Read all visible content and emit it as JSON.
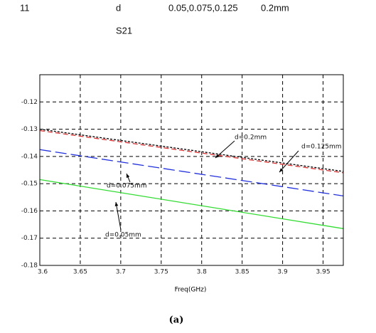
{
  "document": {
    "lines": [
      "11",
      "d",
      "0.05,0.075,0.125",
      "0.2mm",
      "S21"
    ]
  },
  "chart_data": {
    "type": "line",
    "x_label": "Freq(GHz)",
    "xlim": [
      3.6,
      3.975
    ],
    "xticks": [
      3.6,
      3.65,
      3.7,
      3.75,
      3.8,
      3.85,
      3.9,
      3.95
    ],
    "ylim": [
      -0.18,
      -0.11
    ],
    "yticks": [
      -0.18,
      -0.17,
      -0.16,
      -0.15,
      -0.14,
      -0.13,
      -0.12
    ],
    "grid": true,
    "x": [
      3.6,
      3.975
    ],
    "series": [
      {
        "name": "d=0.2mm",
        "color": "#000000",
        "dash": "3,2",
        "values": [
          -0.13,
          -0.1455
        ]
      },
      {
        "name": "d=0.125mm",
        "color": "#e03030",
        "dash": "7,4",
        "values": [
          -0.1305,
          -0.146
        ]
      },
      {
        "name": "d=0.075mm",
        "color": "#2030e0",
        "dash": "16,6",
        "values": [
          -0.1375,
          -0.1545
        ]
      },
      {
        "name": "d=0.05mm",
        "color": "#30dd30",
        "dash": "",
        "values": [
          -0.1485,
          -0.1665
        ]
      }
    ]
  },
  "caption": "(a)"
}
